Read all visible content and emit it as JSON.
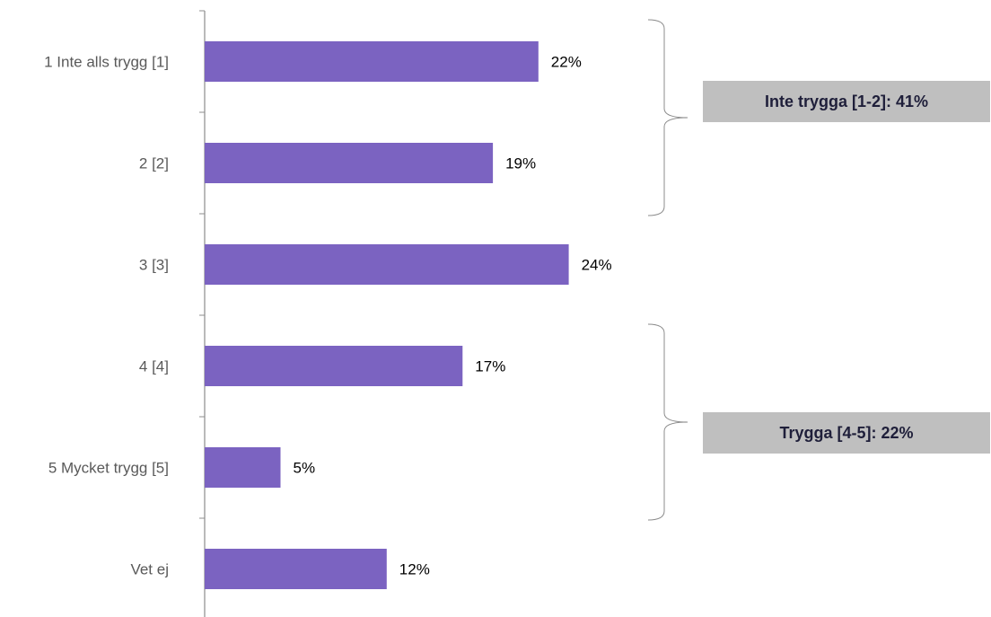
{
  "chart_data": {
    "type": "bar",
    "orientation": "horizontal",
    "categories": [
      "1 Inte alls trygg [1]",
      "2 [2]",
      "3 [3]",
      "4 [4]",
      "5 Mycket trygg [5]",
      "Vet ej"
    ],
    "values": [
      22,
      19,
      24,
      17,
      5,
      12
    ],
    "value_labels": [
      "22%",
      "19%",
      "24%",
      "17%",
      "5%",
      "12%"
    ],
    "unit": "%",
    "xlim": [
      0,
      50
    ],
    "grid": false,
    "bar_color": "#7b63c1",
    "groups": [
      {
        "label": "Inte trygga [1-2]: 41%",
        "categories": [
          0,
          1
        ]
      },
      {
        "label": "Trygga [4-5]: 22%",
        "categories": [
          3,
          4
        ]
      }
    ]
  },
  "colors": {
    "bar": "#7b63c1",
    "group_box": "#bfbfbf",
    "group_text": "#1f1f3a",
    "axis": "#8c8c8c",
    "category_text": "#595959"
  }
}
